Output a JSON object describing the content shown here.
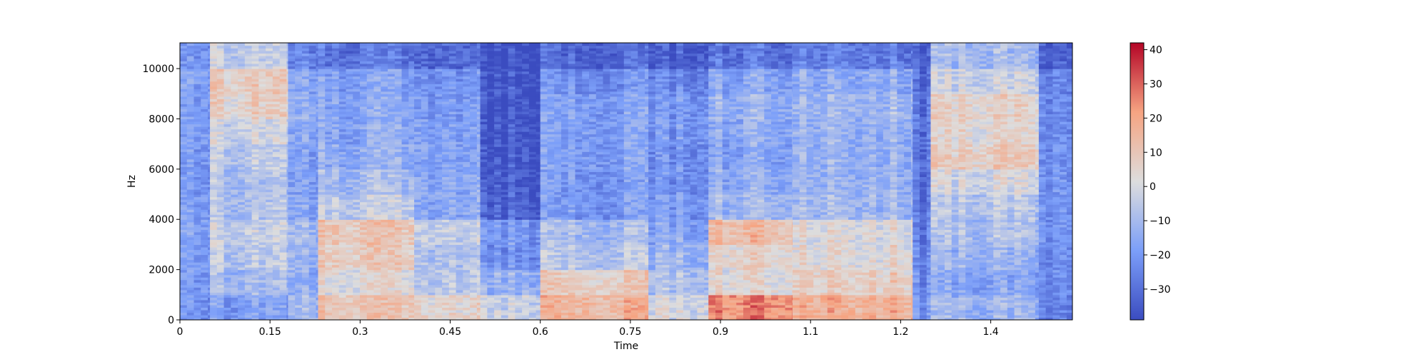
{
  "chart_data": {
    "type": "heatmap",
    "title": "",
    "xlabel": "Time",
    "ylabel": "Hz",
    "xlim": [
      0,
      1.486
    ],
    "ylim": [
      0,
      11025
    ],
    "x_ticks": [
      0,
      0.15,
      0.3,
      0.45,
      0.6,
      0.75,
      0.9,
      1.05,
      1.2,
      1.35
    ],
    "x_tick_labels": [
      "0",
      "0.15",
      "0.3",
      "0.45",
      "0.6",
      "0.75",
      "0.9",
      "1.1",
      "1.2",
      "1.4"
    ],
    "y_ticks": [
      0,
      2000,
      4000,
      6000,
      8000,
      10000
    ],
    "y_tick_labels": [
      "0",
      "2000",
      "4000",
      "6000",
      "8000",
      "10000"
    ],
    "colormap": "coolwarm",
    "colorbar": {
      "range": [
        -39,
        42
      ],
      "ticks": [
        -30,
        -20,
        -10,
        0,
        10,
        20,
        30,
        40
      ],
      "tick_labels": [
        "−30",
        "−20",
        "−10",
        "0",
        "10",
        "20",
        "30",
        "40"
      ]
    },
    "time_step_s": 0.0116,
    "frequency_bands_hz": [
      0,
      1000,
      2000,
      3000,
      4000,
      5000,
      6000,
      7000,
      8000,
      9000,
      10000,
      11025
    ],
    "segments": [
      {
        "t": [
          0.0,
          0.05
        ],
        "level_db": [
          -22,
          -20,
          -19,
          -18,
          -18,
          -20,
          -20,
          -19,
          -19,
          -18,
          -22
        ]
      },
      {
        "t": [
          0.05,
          0.18
        ],
        "level_db": [
          -18,
          -10,
          -6,
          -4,
          -8,
          -8,
          -6,
          -2,
          6,
          8,
          -4
        ]
      },
      {
        "t": [
          0.18,
          0.23
        ],
        "level_db": [
          -10,
          -14,
          -12,
          -10,
          -16,
          -18,
          -18,
          -16,
          -14,
          -16,
          -25
        ]
      },
      {
        "t": [
          0.23,
          0.39
        ],
        "level_db": [
          10,
          2,
          8,
          10,
          -4,
          -10,
          -14,
          -16,
          -16,
          -18,
          -28
        ]
      },
      {
        "t": [
          0.39,
          0.5
        ],
        "level_db": [
          6,
          -4,
          -6,
          -2,
          -14,
          -14,
          -16,
          -16,
          -18,
          -20,
          -30
        ]
      },
      {
        "t": [
          0.5,
          0.6
        ],
        "level_db": [
          -2,
          -12,
          -22,
          -20,
          -33,
          -35,
          -36,
          -36,
          -36,
          -36,
          -38
        ]
      },
      {
        "t": [
          0.6,
          0.78
        ],
        "level_db": [
          16,
          8,
          -6,
          -10,
          -20,
          -20,
          -18,
          -18,
          -18,
          -22,
          -32
        ]
      },
      {
        "t": [
          0.78,
          0.88
        ],
        "level_db": [
          0,
          -8,
          -12,
          -16,
          -20,
          -22,
          -22,
          -20,
          -20,
          -24,
          -34
        ]
      },
      {
        "t": [
          0.88,
          1.02
        ],
        "level_db": [
          26,
          4,
          6,
          14,
          -10,
          -14,
          -16,
          -14,
          -12,
          -16,
          -28
        ]
      },
      {
        "t": [
          1.02,
          1.22
        ],
        "level_db": [
          18,
          8,
          4,
          2,
          -10,
          -12,
          -12,
          -12,
          -10,
          -14,
          -26
        ]
      },
      {
        "t": [
          1.22,
          1.25
        ],
        "level_db": [
          -22,
          -24,
          -26,
          -28,
          -30,
          -30,
          -30,
          -30,
          -30,
          -32,
          -35
        ]
      },
      {
        "t": [
          1.25,
          1.43
        ],
        "level_db": [
          -12,
          -16,
          -12,
          -8,
          -6,
          0,
          8,
          4,
          6,
          -2,
          -10
        ]
      },
      {
        "t": [
          1.43,
          1.486
        ],
        "level_db": [
          -26,
          -24,
          -24,
          -22,
          -22,
          -22,
          -24,
          -24,
          -24,
          -26,
          -34
        ]
      }
    ]
  }
}
